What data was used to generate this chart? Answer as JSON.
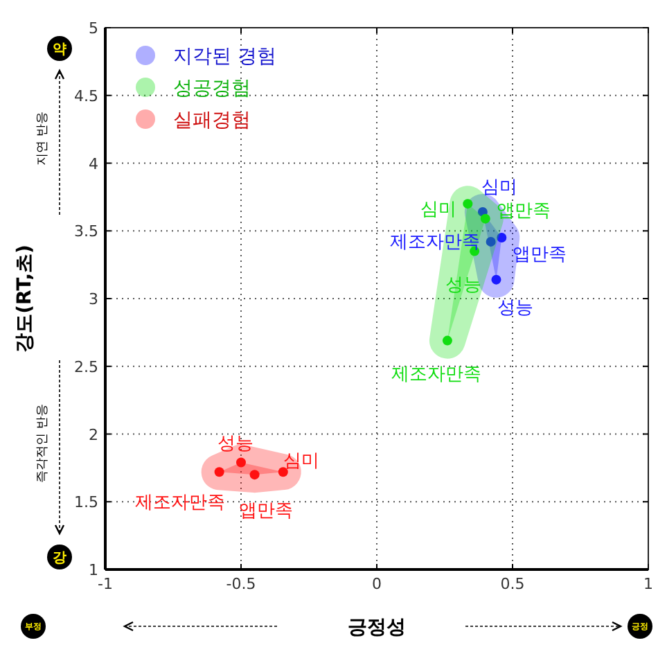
{
  "chart_data": {
    "type": "scatter",
    "xlabel": "긍정성",
    "ylabel": "강도(RT,초)",
    "xlim": [
      -1,
      1
    ],
    "ylim": [
      1,
      5
    ],
    "xticks": [
      -1,
      -0.5,
      0,
      0.5,
      1
    ],
    "yticks": [
      1,
      1.5,
      2,
      2.5,
      3,
      3.5,
      4,
      4.5,
      5
    ],
    "grid": true,
    "legend": "top left",
    "marker": "circle",
    "series": [
      {
        "name": "지각된 경험",
        "color": "#1a1aff",
        "x": [
          0.39,
          0.46,
          0.42,
          0.44
        ],
        "values": [
          3.64,
          3.45,
          3.42,
          3.14
        ]
      },
      {
        "name": "성공경험",
        "color": "#11dd11",
        "x": [
          0.335,
          0.4,
          0.36,
          0.26
        ],
        "values": [
          3.7,
          3.59,
          3.35,
          2.69
        ]
      },
      {
        "name": "실패경험",
        "color": "#ff1111",
        "x": [
          -0.58,
          -0.5,
          -0.45,
          -0.345
        ],
        "values": [
          1.72,
          1.79,
          1.7,
          1.72
        ]
      }
    ],
    "annotations": [
      {
        "text": "심미",
        "x": 0.39,
        "y": 3.64
      },
      {
        "text": "앱만족",
        "x": 0.46,
        "y": 3.45
      },
      {
        "text": "제조자만족",
        "x": 0.42,
        "y": 3.42
      },
      {
        "text": "성능",
        "x": 0.44,
        "y": 3.14
      },
      {
        "text": "심미",
        "x": 0.335,
        "y": 3.7
      },
      {
        "text": "앱만족",
        "x": 0.4,
        "y": 3.59
      },
      {
        "text": "성능",
        "x": 0.36,
        "y": 3.35
      },
      {
        "text": "제조자만족",
        "x": 0.26,
        "y": 2.69
      },
      {
        "text": "제조자만족",
        "x": -0.58,
        "y": 1.72
      },
      {
        "text": "성능",
        "x": -0.5,
        "y": 1.79
      },
      {
        "text": "앱만족",
        "x": -0.45,
        "y": 1.7
      },
      {
        "text": "심미",
        "x": -0.345,
        "y": 1.72
      },
      "약",
      "지연 반응",
      "즉각적인 반응",
      "강",
      "부정",
      "긍정"
    ]
  }
}
